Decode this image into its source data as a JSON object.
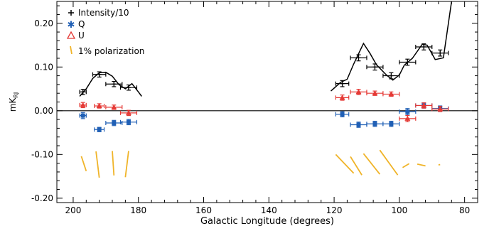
{
  "chart_data": {
    "type": "scatter",
    "xlabel": "Galactic Longitude (degrees)",
    "ylabel": "mK",
    "ylabel_sub": "RJ",
    "xlim": [
      205,
      76
    ],
    "ylim": [
      -0.21,
      0.25
    ],
    "xticks": [
      200,
      180,
      160,
      140,
      120,
      100,
      80
    ],
    "yticks": [
      -0.2,
      -0.1,
      0.0,
      0.1,
      0.2
    ],
    "ytick_labels": [
      "-0.20",
      "-0.10",
      "0.00",
      "0.10",
      "0.20"
    ],
    "zero_line": true,
    "legend": {
      "placement": "top-left",
      "entries": [
        {
          "symbol": "+",
          "label": "Intensity/10"
        },
        {
          "symbol": "✱",
          "label": "Q"
        },
        {
          "symbol": "△",
          "label": "U"
        },
        {
          "symbol": "|",
          "label": "1% polarization"
        }
      ]
    },
    "series": [
      {
        "name": "Intensity/10",
        "color": "#000000",
        "marker": "plus",
        "points": [
          {
            "x": 197,
            "y": 0.043,
            "xerr": 1,
            "yerr": 0.006
          },
          {
            "x": 192,
            "y": 0.083,
            "xerr": 2,
            "yerr": 0.006
          },
          {
            "x": 187.5,
            "y": 0.061,
            "xerr": 2.5,
            "yerr": 0.006
          },
          {
            "x": 183,
            "y": 0.053,
            "xerr": 2.5,
            "yerr": 0.006
          },
          {
            "x": 117.5,
            "y": 0.062,
            "xerr": 2,
            "yerr": 0.007
          },
          {
            "x": 112.5,
            "y": 0.121,
            "xerr": 2.5,
            "yerr": 0.007
          },
          {
            "x": 107.5,
            "y": 0.1,
            "xerr": 2.5,
            "yerr": 0.007
          },
          {
            "x": 102.5,
            "y": 0.08,
            "xerr": 2.5,
            "yerr": 0.007
          },
          {
            "x": 97.5,
            "y": 0.111,
            "xerr": 2.5,
            "yerr": 0.007
          },
          {
            "x": 92.5,
            "y": 0.146,
            "xerr": 2.5,
            "yerr": 0.007
          },
          {
            "x": 87.5,
            "y": 0.132,
            "xerr": 2.5,
            "yerr": 0.007
          }
        ],
        "line": [
          [
            198,
            0.033
          ],
          [
            196,
            0.05
          ],
          [
            194,
            0.074
          ],
          [
            192,
            0.087
          ],
          [
            190,
            0.088
          ],
          [
            188,
            0.079
          ],
          [
            186,
            0.06
          ],
          [
            184,
            0.05
          ],
          [
            182,
            0.062
          ],
          [
            180,
            0.043
          ],
          [
            179,
            0.033
          ],
          [
            121,
            0.045
          ],
          [
            118,
            0.065
          ],
          [
            116,
            0.072
          ],
          [
            114,
            0.107
          ],
          [
            111,
            0.154
          ],
          [
            109,
            0.131
          ],
          [
            107,
            0.105
          ],
          [
            104,
            0.082
          ],
          [
            102,
            0.07
          ],
          [
            100,
            0.082
          ],
          [
            98.5,
            0.104
          ],
          [
            96,
            0.12
          ],
          [
            93,
            0.152
          ],
          [
            91.5,
            0.15
          ],
          [
            89,
            0.117
          ],
          [
            86.5,
            0.121
          ],
          [
            84,
            0.25
          ]
        ]
      },
      {
        "name": "Q",
        "color": "#1f5fb5",
        "marker": "asterisk",
        "points": [
          {
            "x": 197,
            "y": -0.011,
            "xerr": 1,
            "yerr": 0.007
          },
          {
            "x": 192,
            "y": -0.043,
            "xerr": 1.5,
            "yerr": 0.005
          },
          {
            "x": 187.5,
            "y": -0.028,
            "xerr": 2.5,
            "yerr": 0.006
          },
          {
            "x": 183,
            "y": -0.026,
            "xerr": 2.5,
            "yerr": 0.006
          },
          {
            "x": 117.5,
            "y": -0.008,
            "xerr": 2,
            "yerr": 0.006
          },
          {
            "x": 112.5,
            "y": -0.032,
            "xerr": 2.5,
            "yerr": 0.006
          },
          {
            "x": 107.5,
            "y": -0.03,
            "xerr": 2.5,
            "yerr": 0.006
          },
          {
            "x": 102.5,
            "y": -0.03,
            "xerr": 2.5,
            "yerr": 0.006
          },
          {
            "x": 97.5,
            "y": -0.002,
            "xerr": 2.5,
            "yerr": 0.007
          },
          {
            "x": 92.5,
            "y": 0.012,
            "xerr": 2.5,
            "yerr": 0.006
          },
          {
            "x": 87.5,
            "y": 0.005,
            "xerr": 2.5,
            "yerr": 0.006
          }
        ]
      },
      {
        "name": "U",
        "color": "#e53935",
        "marker": "triangle",
        "points": [
          {
            "x": 197,
            "y": 0.013,
            "xerr": 1,
            "yerr": 0.006
          },
          {
            "x": 192,
            "y": 0.011,
            "xerr": 1.5,
            "yerr": 0.005
          },
          {
            "x": 187.5,
            "y": 0.008,
            "xerr": 2.5,
            "yerr": 0.005
          },
          {
            "x": 183,
            "y": -0.005,
            "xerr": 2.5,
            "yerr": 0.006
          },
          {
            "x": 117.5,
            "y": 0.03,
            "xerr": 2,
            "yerr": 0.006
          },
          {
            "x": 112.5,
            "y": 0.043,
            "xerr": 2.5,
            "yerr": 0.006
          },
          {
            "x": 107.5,
            "y": 0.04,
            "xerr": 2.5,
            "yerr": 0.005
          },
          {
            "x": 102.5,
            "y": 0.038,
            "xerr": 2.5,
            "yerr": 0.005
          },
          {
            "x": 97.5,
            "y": -0.018,
            "xerr": 2.5,
            "yerr": 0.007
          },
          {
            "x": 92.5,
            "y": 0.012,
            "xerr": 2.5,
            "yerr": 0.006
          },
          {
            "x": 87.5,
            "y": 0.004,
            "xerr": 2.5,
            "yerr": 0.006
          }
        ]
      }
    ],
    "polarization_vectors": {
      "color": "#f0b429",
      "segments": [
        [
          197.5,
          -0.104,
          196,
          -0.138
        ],
        [
          193,
          -0.093,
          192,
          -0.153
        ],
        [
          188,
          -0.092,
          187.5,
          -0.148
        ],
        [
          183,
          -0.092,
          184,
          -0.152
        ],
        [
          119.5,
          -0.1,
          114,
          -0.143
        ],
        [
          115,
          -0.105,
          111.5,
          -0.147
        ],
        [
          111,
          -0.098,
          106,
          -0.145
        ],
        [
          106,
          -0.09,
          100.5,
          -0.147
        ],
        [
          99,
          -0.13,
          97,
          -0.121
        ],
        [
          94.5,
          -0.122,
          92,
          -0.126
        ],
        [
          88,
          -0.124,
          87.5,
          -0.123
        ]
      ]
    }
  }
}
